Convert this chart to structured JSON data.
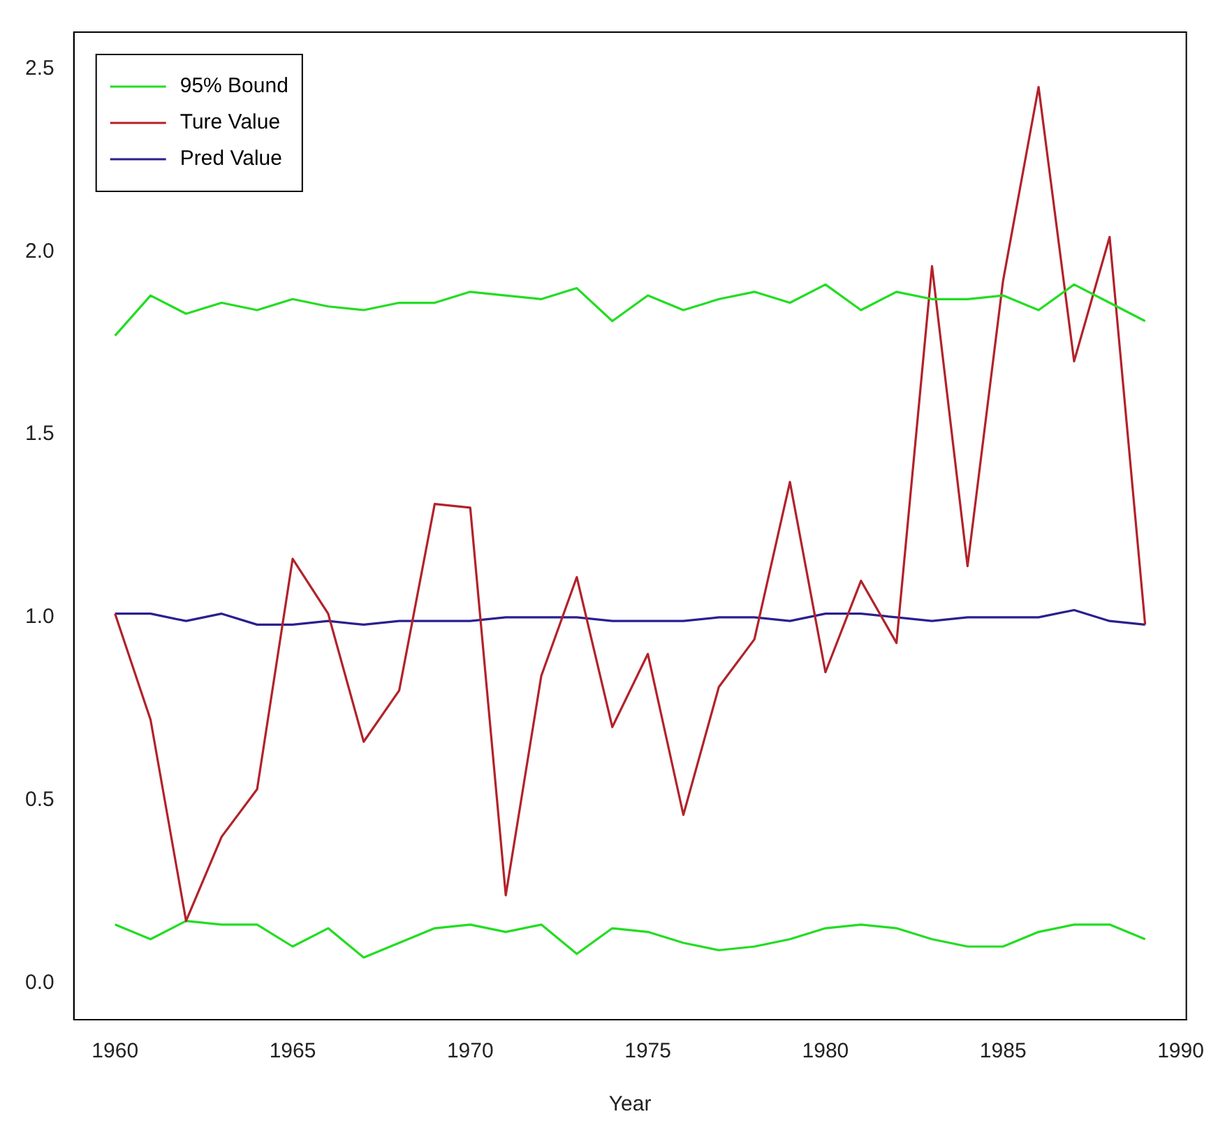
{
  "chart_data": {
    "type": "line",
    "xlabel": "Year",
    "x": [
      1960,
      1961,
      1962,
      1963,
      1964,
      1965,
      1966,
      1967,
      1968,
      1969,
      1970,
      1971,
      1972,
      1973,
      1974,
      1975,
      1976,
      1977,
      1978,
      1979,
      1980,
      1981,
      1982,
      1983,
      1984,
      1985,
      1986,
      1987,
      1988,
      1989
    ],
    "series": [
      {
        "name": "95% Bound",
        "color": "#22dd22",
        "values": [
          1.77,
          1.88,
          1.83,
          1.86,
          1.84,
          1.87,
          1.85,
          1.84,
          1.86,
          1.86,
          1.89,
          1.88,
          1.87,
          1.9,
          1.81,
          1.88,
          1.84,
          1.87,
          1.89,
          1.86,
          1.91,
          1.84,
          1.89,
          1.87,
          1.87,
          1.88,
          1.84,
          1.91,
          1.86,
          1.81
        ]
      },
      {
        "name": "Ture Value",
        "color": "#b2222a",
        "values": [
          1.01,
          0.72,
          0.17,
          0.4,
          0.53,
          1.16,
          1.01,
          0.66,
          0.8,
          1.31,
          1.3,
          0.24,
          0.84,
          1.11,
          0.7,
          0.9,
          0.46,
          0.81,
          0.94,
          1.37,
          0.85,
          1.1,
          0.93,
          1.96,
          1.14,
          1.92,
          2.45,
          1.7,
          2.04,
          0.98
        ]
      },
      {
        "name": "Pred Value",
        "color": "#2a1f8f",
        "values": [
          1.01,
          1.01,
          0.99,
          1.01,
          0.98,
          0.98,
          0.99,
          0.98,
          0.99,
          0.99,
          0.99,
          1.0,
          1.0,
          1.0,
          0.99,
          0.99,
          0.99,
          1.0,
          1.0,
          0.99,
          1.01,
          1.01,
          1.0,
          0.99,
          1.0,
          1.0,
          1.0,
          1.02,
          0.99,
          0.98
        ]
      },
      {
        "color": "#22dd22",
        "values": [
          0.16,
          0.12,
          0.17,
          0.16,
          0.16,
          0.1,
          0.15,
          0.07,
          0.11,
          0.15,
          0.16,
          0.14,
          0.16,
          0.08,
          0.15,
          0.14,
          0.11,
          0.09,
          0.1,
          0.12,
          0.15,
          0.16,
          0.15,
          0.12,
          0.1,
          0.1,
          0.14,
          0.16,
          0.16,
          0.12
        ]
      }
    ],
    "xlim": [
      1958.84,
      1990.16
    ],
    "xticks": [
      1960,
      1965,
      1970,
      1975,
      1980,
      1985,
      1990
    ],
    "ylim": [
      -0.1,
      2.6
    ],
    "yticks": [
      {
        "value": 0,
        "label": "0.0"
      },
      0.5,
      {
        "value": 1,
        "label": "1.0"
      },
      1.5,
      {
        "value": 2,
        "label": "2.0"
      },
      2.5
    ],
    "grid": false,
    "legend": "top left",
    "marker": "none",
    "line_style": "solid"
  }
}
